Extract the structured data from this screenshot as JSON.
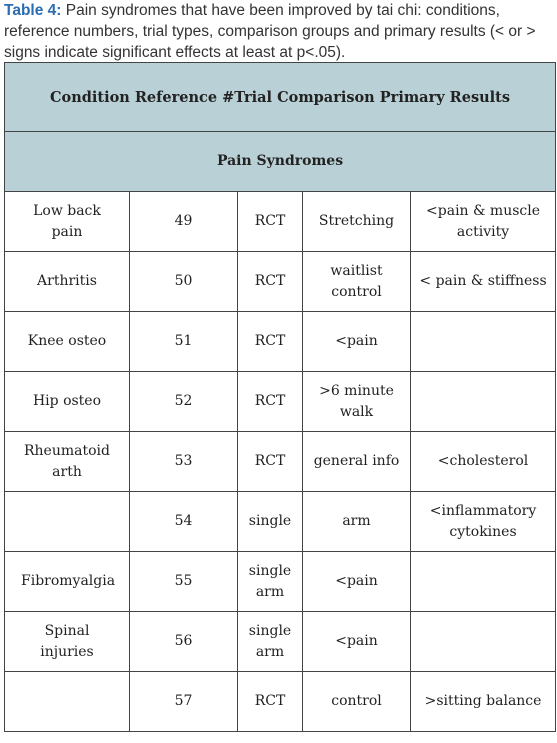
{
  "caption": {
    "label": "Table 4:",
    "text": "Pain syndromes that have been improved by tai chi: conditions, reference numbers, trial types, comparison groups and primary results (< or > signs indicate significant effects at least at p<.05)."
  },
  "table": {
    "header": "Condition Reference #Trial Comparison Primary Results",
    "section": "Pain Syndromes",
    "rows": [
      [
        "Low back pain",
        "49",
        "RCT",
        "Stretching",
        "<pain & muscle activity"
      ],
      [
        "Arthritis",
        "50",
        "RCT",
        "waitlist control",
        "< pain & stiffness"
      ],
      [
        "Knee osteo",
        "51",
        "RCT",
        "<pain",
        null
      ],
      [
        "Hip osteo",
        "52",
        "RCT",
        ">6 minute walk",
        null
      ],
      [
        "Rheumatoid arth",
        "53",
        "RCT",
        "general info",
        "<cholesterol"
      ],
      [
        null,
        "54",
        "single",
        "arm",
        "<inflammatory cytokines"
      ],
      [
        "Fibromyalgia",
        "55",
        "single arm",
        "<pain",
        null
      ],
      [
        "Spinal injuries",
        "56",
        "single arm",
        "<pain",
        null
      ],
      [
        null,
        "57",
        "RCT",
        "control",
        ">sitting balance"
      ]
    ]
  }
}
